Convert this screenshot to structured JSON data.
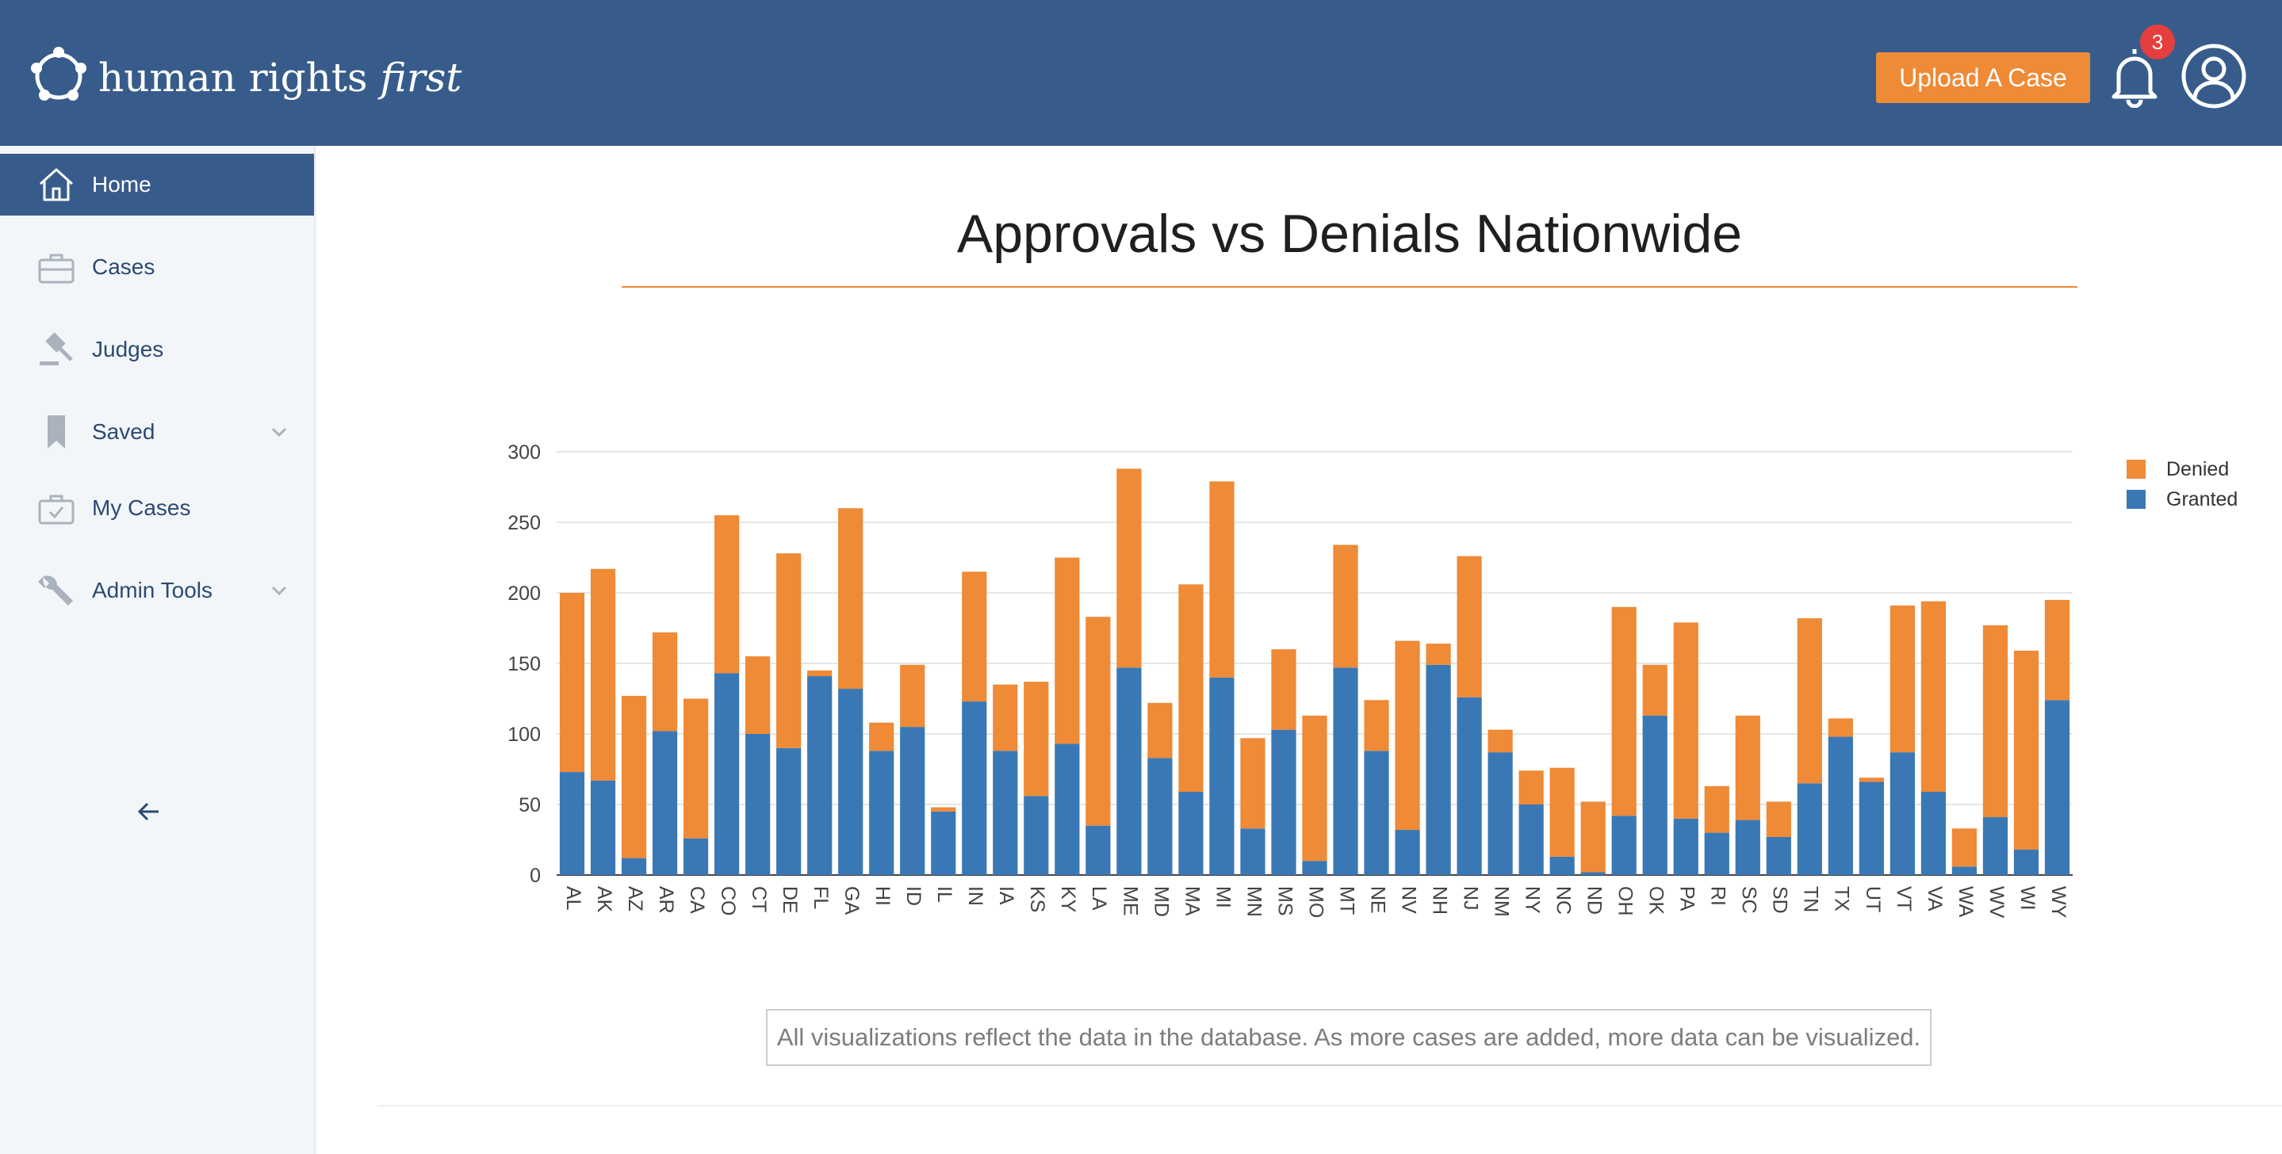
{
  "header": {
    "brand_prefix": "human rights ",
    "brand_italic": "first",
    "upload_label": "Upload A Case",
    "notification_count": "3",
    "colors": {
      "bar": "#375c8b",
      "accent": "#ef8a37"
    }
  },
  "sidebar": {
    "items": [
      {
        "label": "Home",
        "icon": "home-icon",
        "active": true
      },
      {
        "label": "Cases",
        "icon": "briefcase-icon"
      },
      {
        "label": "Judges",
        "icon": "gavel-icon"
      },
      {
        "label": "Saved",
        "icon": "bookmark-icon",
        "expandable": true
      },
      {
        "label": "My Cases",
        "icon": "briefcase-check-icon"
      },
      {
        "label": "Admin Tools",
        "icon": "wrench-icon",
        "expandable": true
      }
    ],
    "collapse_icon": "arrow-left-icon"
  },
  "main": {
    "title": "Approvals vs Denials Nationwide",
    "note": "All visualizations reflect the data in the database. As more cases are added, more data can be visualized."
  },
  "chart_data": {
    "type": "bar",
    "stacked": true,
    "categories": [
      "AL",
      "AK",
      "AZ",
      "AR",
      "CA",
      "CO",
      "CT",
      "DE",
      "FL",
      "GA",
      "HI",
      "ID",
      "IL",
      "IN",
      "IA",
      "KS",
      "KY",
      "LA",
      "ME",
      "MD",
      "MA",
      "MI",
      "MN",
      "MS",
      "MO",
      "MT",
      "NE",
      "NV",
      "NH",
      "NJ",
      "NM",
      "NY",
      "NC",
      "ND",
      "OH",
      "OK",
      "PA",
      "RI",
      "SC",
      "SD",
      "TN",
      "TX",
      "UT",
      "VT",
      "VA",
      "WA",
      "WV",
      "WI",
      "WY"
    ],
    "series": [
      {
        "name": "Granted",
        "color": "#3a78b5",
        "values": [
          73,
          67,
          12,
          102,
          26,
          143,
          100,
          90,
          141,
          132,
          88,
          105,
          45,
          123,
          88,
          56,
          93,
          35,
          147,
          83,
          59,
          140,
          33,
          103,
          10,
          147,
          88,
          32,
          149,
          126,
          87,
          50,
          13,
          2,
          42,
          113,
          40,
          30,
          39,
          27,
          65,
          98,
          66,
          87,
          59,
          6,
          41,
          18,
          124
        ]
      },
      {
        "name": "Denied",
        "color": "#ef8a37",
        "values": [
          127,
          150,
          115,
          70,
          99,
          112,
          55,
          138,
          4,
          128,
          20,
          44,
          3,
          92,
          47,
          81,
          132,
          148,
          141,
          39,
          147,
          139,
          64,
          57,
          103,
          87,
          36,
          134,
          15,
          100,
          16,
          24,
          63,
          50,
          148,
          36,
          139,
          33,
          74,
          25,
          117,
          13,
          3,
          104,
          135,
          27,
          136,
          141,
          71
        ]
      }
    ],
    "ylim": [
      0,
      300
    ],
    "yticks": [
      0,
      50,
      100,
      150,
      200,
      250,
      300
    ],
    "legend_position": "top-right",
    "legend_order": [
      "Denied",
      "Granted"
    ],
    "grid": true
  }
}
